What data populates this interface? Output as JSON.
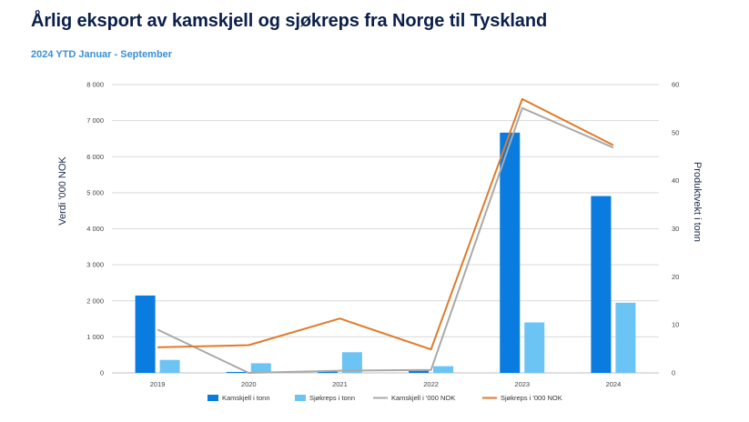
{
  "title": "Årlig eksport av kamskjell og sjøkreps fra Norge til Tyskland",
  "subtitle": "2024 YTD Januar - September",
  "colors": {
    "kamskjell_tonn": "#0a7ce0",
    "sjokreps_tonn": "#6cc4f5",
    "kamskjell_nok": "#a9a9a9",
    "sjokreps_nok": "#e07a2a",
    "grid": "#d9d9d9",
    "title": "#0b1f4a",
    "subtitle": "#3a8fd6"
  },
  "chart_data": {
    "type": "bar",
    "title": "Årlig eksport av kamskjell og sjøkreps fra Norge til Tyskland",
    "subtitle": "2024 YTD Januar - September",
    "categories": [
      "2019",
      "2020",
      "2021",
      "2022",
      "2023",
      "2024"
    ],
    "ylabel": "Verdi '000 NOK",
    "y2label": "Produktvekt i tonn",
    "ylim": [
      0,
      8000
    ],
    "y2lim": [
      0,
      60
    ],
    "yticks": [
      "0",
      "1 000",
      "2 000",
      "3 000",
      "4 000",
      "5 000",
      "6 000",
      "7 000",
      "8 000"
    ],
    "y2ticks": [
      "0",
      "10",
      "20",
      "30",
      "40",
      "50",
      "60"
    ],
    "grid": true,
    "legend_position": "bottom",
    "series": [
      {
        "name": "Kamskjell i tonn",
        "type": "bar",
        "axis": "right",
        "color": "#0a7ce0",
        "values": [
          16.1,
          0.2,
          0.4,
          0.5,
          50.0,
          36.8
        ]
      },
      {
        "name": "Sjøkreps i tonn",
        "type": "bar",
        "axis": "right",
        "color": "#6cc4f5",
        "values": [
          2.7,
          2.0,
          4.3,
          1.4,
          10.5,
          14.6
        ]
      },
      {
        "name": "Kamskjell i '000 NOK",
        "type": "line",
        "axis": "left",
        "color": "#a9a9a9",
        "values": [
          1200,
          0,
          60,
          80,
          7350,
          6250
        ]
      },
      {
        "name": "Sjøkreps i '000 NOK",
        "type": "line",
        "axis": "left",
        "color": "#e07a2a",
        "values": [
          710,
          770,
          1510,
          650,
          7600,
          6320
        ]
      }
    ]
  }
}
